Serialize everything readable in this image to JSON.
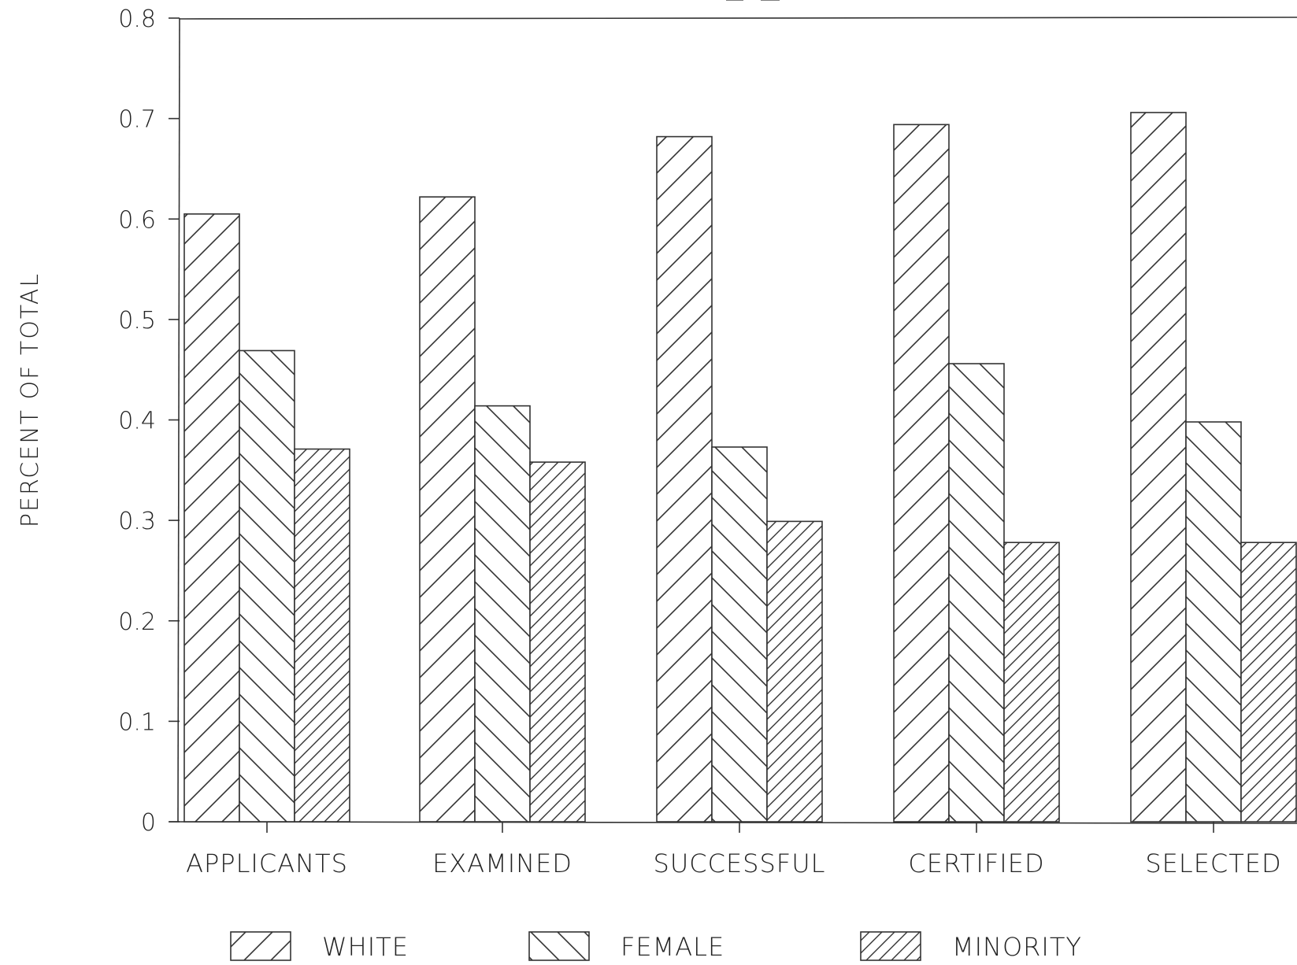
{
  "chart_data": {
    "type": "bar",
    "title": "",
    "xlabel": "",
    "ylabel": "PERCENT OF TOTAL",
    "ylim": [
      0,
      0.8
    ],
    "yticks": [
      "0",
      "0.1",
      "0.2",
      "0.3",
      "0.4",
      "0.5",
      "0.6",
      "0.7",
      "0.8"
    ],
    "categories": [
      "APPLICANTS",
      "EXAMINED",
      "SUCCESSFUL",
      "CERTIFIED",
      "SELECTED"
    ],
    "series": [
      {
        "name": "WHITE",
        "values": [
          0.605,
          0.622,
          0.682,
          0.694,
          0.706
        ],
        "pattern": "forward-diagonal-wide"
      },
      {
        "name": "FEMALE",
        "values": [
          0.469,
          0.414,
          0.373,
          0.456,
          0.398
        ],
        "pattern": "back-diagonal-wide"
      },
      {
        "name": "MINORITY",
        "values": [
          0.371,
          0.358,
          0.299,
          0.278,
          0.278
        ],
        "pattern": "forward-diagonal-dense"
      }
    ],
    "grid": false,
    "legend_position": "bottom",
    "colors": {
      "ink": "#222222",
      "background": "#ffffff"
    }
  }
}
